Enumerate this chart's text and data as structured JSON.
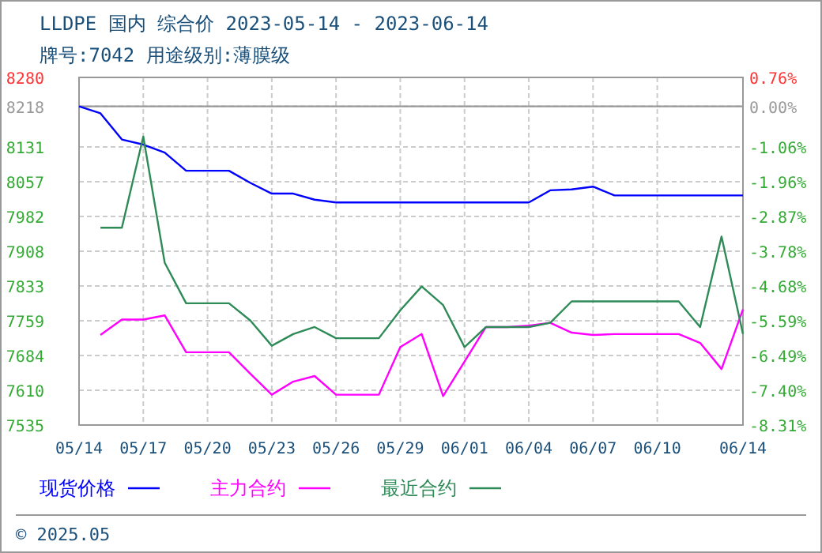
{
  "chart_data": {
    "type": "line",
    "title": "LLDPE 国内 综合价 2023-05-14 - 2023-06-14",
    "subtitle": "牌号:7042 用途级别:薄膜级",
    "x": [
      "2023-05-14",
      "2023-05-15",
      "2023-05-16",
      "2023-05-17",
      "2023-05-18",
      "2023-05-19",
      "2023-05-20",
      "2023-05-21",
      "2023-05-22",
      "2023-05-23",
      "2023-05-24",
      "2023-05-25",
      "2023-05-26",
      "2023-05-27",
      "2023-05-28",
      "2023-05-29",
      "2023-05-30",
      "2023-05-31",
      "2023-06-01",
      "2023-06-02",
      "2023-06-03",
      "2023-06-04",
      "2023-06-05",
      "2023-06-06",
      "2023-06-07",
      "2023-06-08",
      "2023-06-09",
      "2023-06-10",
      "2023-06-11",
      "2023-06-12",
      "2023-06-13",
      "2023-06-14"
    ],
    "series": [
      {
        "name": "现货价格",
        "color": "#0000ff",
        "values": [
          8218,
          8203,
          8147,
          8136,
          8119,
          8080,
          8080,
          8080,
          8054,
          8031,
          8031,
          8018,
          8012,
          8012,
          8012,
          8012,
          8012,
          8012,
          8012,
          8012,
          8012,
          8012,
          8038,
          8040,
          8046,
          8027,
          8027,
          8027,
          8027,
          8027,
          8027,
          8027
        ]
      },
      {
        "name": "主力合约",
        "color": "#ff00ff",
        "values": [
          null,
          7728,
          7761,
          7761,
          7770,
          7691,
          7691,
          7691,
          7645,
          7600,
          7628,
          7640,
          7600,
          7600,
          7600,
          7702,
          7730,
          7597,
          7671,
          7745,
          7745,
          7748,
          7754,
          7733,
          7728,
          7730,
          7730,
          7730,
          7730,
          7711,
          7655,
          7783
        ]
      },
      {
        "name": "最近合约",
        "color": "#2e8b57",
        "values": [
          null,
          7958,
          7958,
          8153,
          7883,
          7796,
          7796,
          7796,
          7759,
          7705,
          7730,
          7745,
          7721,
          7721,
          7721,
          7781,
          7832,
          7792,
          7702,
          7745,
          7745,
          7745,
          7754,
          7800,
          7800,
          7800,
          7800,
          7800,
          7800,
          7745,
          7939,
          7730
        ]
      }
    ],
    "xlim": [
      "2023-05-14",
      "2023-06-14"
    ],
    "xticks": [
      {
        "value": "2023-05-14",
        "label": "05/14"
      },
      {
        "value": "2023-05-17",
        "label": "05/17"
      },
      {
        "value": "2023-05-20",
        "label": "05/20"
      },
      {
        "value": "2023-05-23",
        "label": "05/23"
      },
      {
        "value": "2023-05-26",
        "label": "05/26"
      },
      {
        "value": "2023-05-29",
        "label": "05/29"
      },
      {
        "value": "2023-06-01",
        "label": "06/01"
      },
      {
        "value": "2023-06-04",
        "label": "06/04"
      },
      {
        "value": "2023-06-07",
        "label": "06/07"
      },
      {
        "value": "2023-06-10",
        "label": "06/10"
      },
      {
        "value": "2023-06-14",
        "label": "06/14"
      }
    ],
    "ylim": [
      7535,
      8280
    ],
    "yticks": [
      8280,
      8218,
      8131,
      {
        "value": 8056.5,
        "label": "8057"
      },
      7982,
      {
        "value": 7907.5,
        "label": "7908"
      },
      7833,
      {
        "value": 7758.5,
        "label": "7759"
      },
      7684,
      {
        "value": 7609.5,
        "label": "7610"
      },
      7535
    ],
    "y2lim": [
      -8.31,
      0.76
    ],
    "y2ticks": [
      {
        "value": 0.76,
        "label": "0.76%"
      },
      {
        "value": 0,
        "label": "0.00%"
      },
      {
        "value": -1.06,
        "label": "-1.06%"
      },
      {
        "value": -1.96,
        "label": "-1.96%"
      },
      {
        "value": -2.87,
        "label": "-2.87%"
      },
      {
        "value": -3.78,
        "label": "-3.78%"
      },
      {
        "value": -4.68,
        "label": "-4.68%"
      },
      {
        "value": -5.59,
        "label": "-5.59%"
      },
      {
        "value": -6.49,
        "label": "-6.49%"
      },
      {
        "value": -7.4,
        "label": "-7.40%"
      },
      {
        "value": -8.31,
        "label": "-8.31%"
      }
    ],
    "ref_lines": [
      {
        "axis": "y",
        "value": 8218,
        "color": "#999999"
      }
    ],
    "grid": true,
    "legend": "bottom",
    "marker": "none",
    "line_style": "solid",
    "annotations": [
      "© 2025.05"
    ]
  }
}
